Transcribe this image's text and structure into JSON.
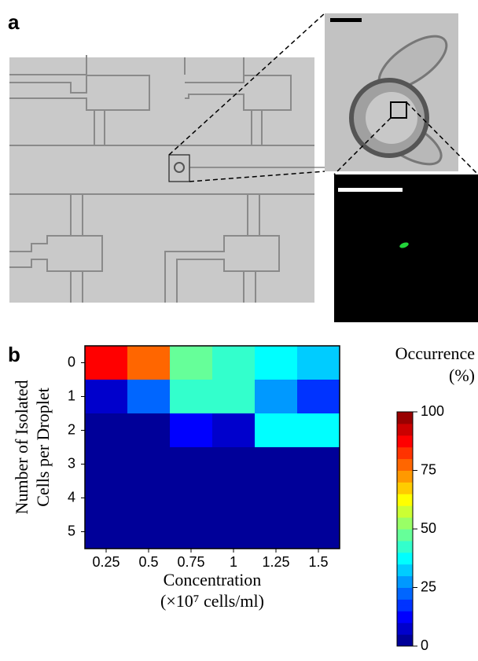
{
  "panel_labels": [
    "a",
    "b"
  ],
  "chart_data": {
    "type": "heatmap",
    "x_label": [
      "Concentration",
      "(×10⁷ cells/ml)"
    ],
    "y_label": [
      "Number of Isolated",
      "Cells per Droplet"
    ],
    "x_categories": [
      "0.25",
      "0.5",
      "0.75",
      "1",
      "1.25",
      "1.5"
    ],
    "y_categories": [
      "0",
      "1",
      "2",
      "3",
      "4",
      "5"
    ],
    "values": [
      [
        85,
        75,
        45,
        42,
        35,
        30
      ],
      [
        8,
        20,
        40,
        42,
        25,
        18
      ],
      [
        0,
        0,
        12,
        6,
        35,
        35
      ],
      [
        0,
        0,
        0,
        0,
        4,
        4
      ],
      [
        0,
        0,
        0,
        0,
        0,
        3
      ],
      [
        0,
        0,
        0,
        0,
        0,
        0
      ]
    ],
    "colormap": "jet",
    "colorbar_label": [
      "Occurrence",
      "(%)"
    ],
    "clim": [
      0,
      100
    ],
    "cticks": [
      0,
      25,
      50,
      75,
      100
    ]
  }
}
